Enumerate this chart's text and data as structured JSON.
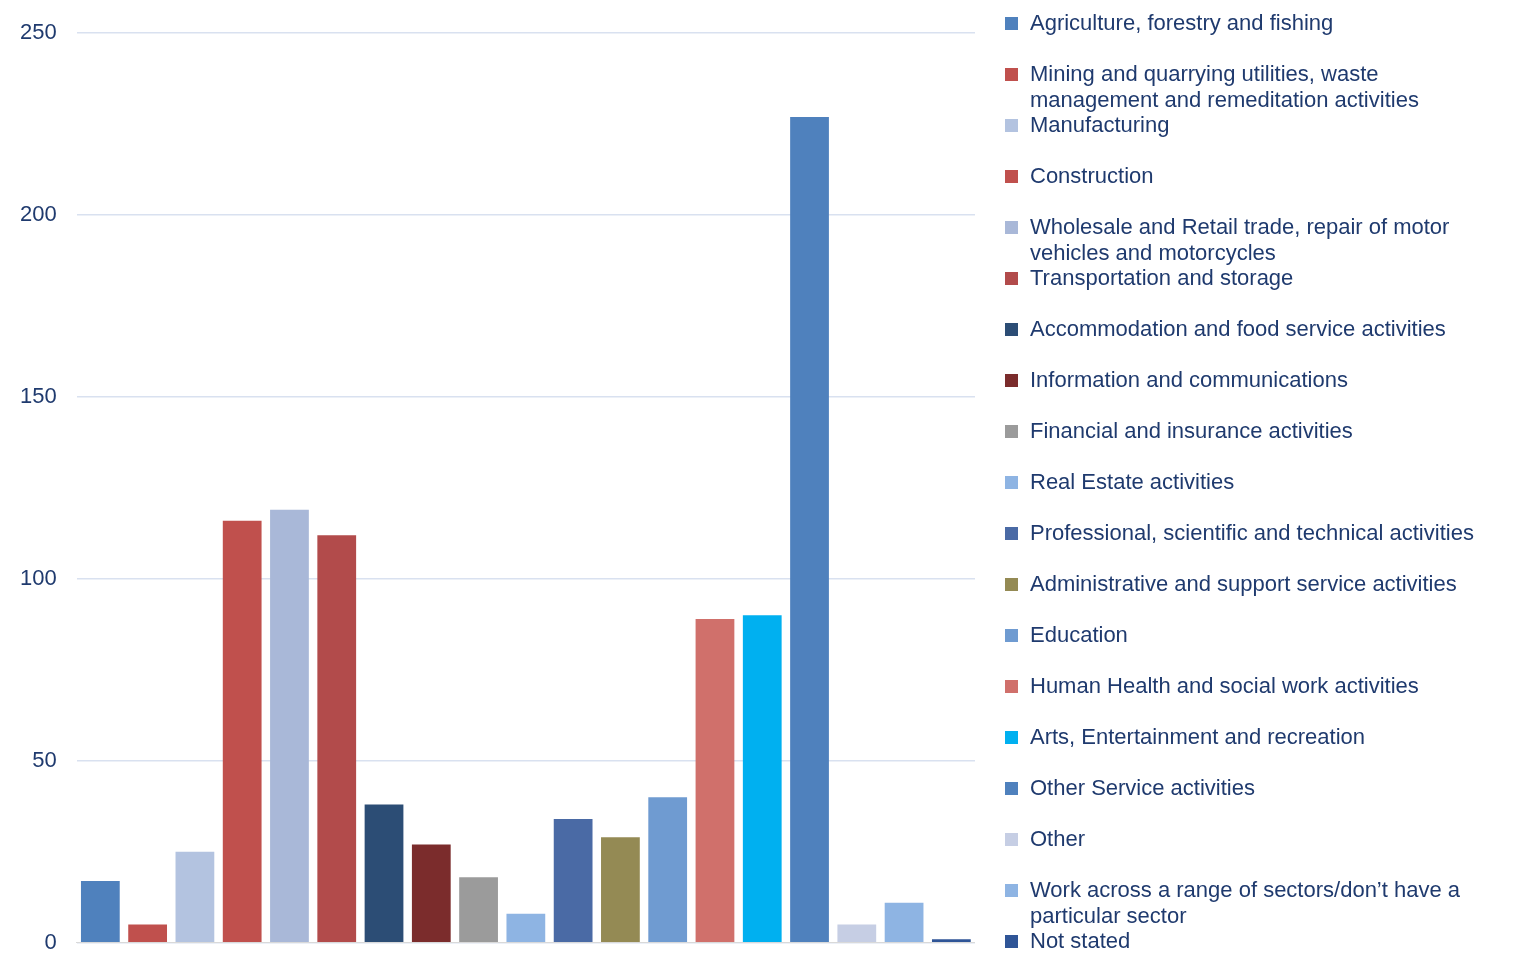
{
  "chart_data": {
    "type": "bar",
    "categories": [
      null
    ],
    "ylim": [
      0,
      250
    ],
    "yticks": [
      0,
      50,
      100,
      150,
      200,
      250
    ],
    "grid": "y",
    "legend": "right",
    "series": [
      {
        "name": "Agriculture, forestry and fishing",
        "color": "#4f81bd",
        "values": [
          17
        ]
      },
      {
        "name": "Mining and quarrying utilities, waste management and remeditation activities",
        "color": "#c0504d",
        "values": [
          5
        ]
      },
      {
        "name": "Manufacturing",
        "color": "#b3c3e0",
        "values": [
          25
        ]
      },
      {
        "name": "Construction",
        "color": "#c0504d",
        "values": [
          116
        ]
      },
      {
        "name": "Wholesale and Retail trade, repair of motor vehicles and motorcycles",
        "color": "#a9b8d8",
        "values": [
          119
        ]
      },
      {
        "name": "Transportation and storage",
        "color": "#b24b4b",
        "values": [
          112
        ]
      },
      {
        "name": "Accommodation and food service activities",
        "color": "#2c4d75",
        "values": [
          38
        ]
      },
      {
        "name": "Information and communications",
        "color": "#7b2c2c",
        "values": [
          27
        ]
      },
      {
        "name": "Financial and insurance activities",
        "color": "#9b9b9b",
        "values": [
          18
        ]
      },
      {
        "name": "Real Estate activities",
        "color": "#8eb4e3",
        "values": [
          8
        ]
      },
      {
        "name": "Professional, scientific and technical activities",
        "color": "#4a6aa5",
        "values": [
          34
        ]
      },
      {
        "name": "Administrative and support service activities",
        "color": "#948a54",
        "values": [
          29
        ]
      },
      {
        "name": "Education",
        "color": "#6f9bd1",
        "values": [
          40
        ]
      },
      {
        "name": "Human Health and social work activities",
        "color": "#d0706b",
        "values": [
          89
        ]
      },
      {
        "name": "Arts, Entertainment and recreation",
        "color": "#00b0f0",
        "values": [
          90
        ]
      },
      {
        "name": "Other Service activities",
        "color": "#4f81bd",
        "values": [
          227
        ]
      },
      {
        "name": "Other",
        "color": "#c6cee4",
        "values": [
          5
        ]
      },
      {
        "name": "Work across a range of sectors/don’t have a particular sector",
        "color": "#8eb4e3",
        "values": [
          11
        ]
      },
      {
        "name": "Not stated",
        "color": "#2f5597",
        "values": [
          1
        ]
      }
    ]
  }
}
